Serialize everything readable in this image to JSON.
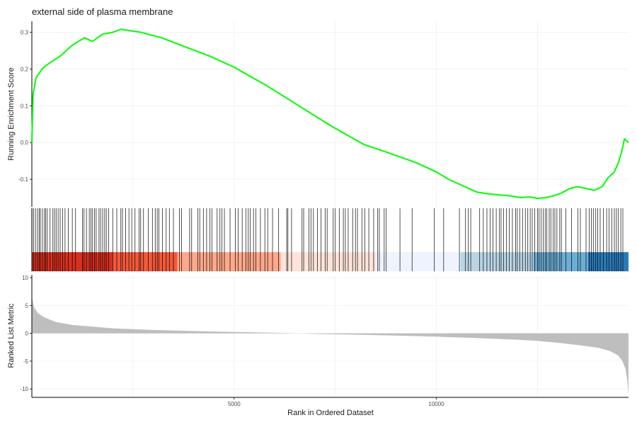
{
  "chart_data": {
    "type": "line",
    "title": "external side of plasma membrane",
    "xlabel": "Rank in Ordered Dataset",
    "xlim": [
      0,
      14750
    ],
    "xticks": [
      5000,
      10000
    ],
    "grid": true,
    "colors": {
      "running_es": "#00ff00",
      "ranked_fill": "#bebebe",
      "hits": "#000000",
      "axis": "#000000",
      "grid": "#ebebeb",
      "rank_bands": [
        "#d7301f",
        "#f4583b",
        "#fca88a",
        "#fde3d9",
        "#eef4fd",
        "#b8d4e5",
        "#6baed6",
        "#2b7bba"
      ]
    },
    "running_score": {
      "ylabel": "Running Enrichment Score",
      "ylim": [
        -0.175,
        0.33
      ],
      "yticks": [
        -0.1,
        0.0,
        0.1,
        0.2,
        0.3
      ],
      "ytick_labels": [
        "-0.1",
        "0.0",
        "0.1",
        "0.2",
        "0.3"
      ],
      "x": [
        0,
        30,
        100,
        250,
        420,
        700,
        1000,
        1300,
        1500,
        1750,
        2000,
        2200,
        2700,
        3200,
        3800,
        4400,
        5000,
        5800,
        6600,
        7400,
        8200,
        8600,
        9000,
        9500,
        10000,
        10300,
        10700,
        11000,
        11300,
        11600,
        11800,
        12100,
        12300,
        12500,
        12700,
        12900,
        13100,
        13300,
        13500,
        13700,
        13900,
        14100,
        14250,
        14400,
        14500,
        14580,
        14650,
        14750
      ],
      "y": [
        0.0,
        0.13,
        0.175,
        0.2,
        0.215,
        0.235,
        0.265,
        0.285,
        0.275,
        0.295,
        0.3,
        0.308,
        0.3,
        0.285,
        0.26,
        0.235,
        0.205,
        0.155,
        0.1,
        0.045,
        -0.005,
        -0.02,
        -0.035,
        -0.055,
        -0.08,
        -0.1,
        -0.12,
        -0.135,
        -0.14,
        -0.143,
        -0.145,
        -0.15,
        -0.148,
        -0.152,
        -0.15,
        -0.145,
        -0.137,
        -0.125,
        -0.12,
        -0.125,
        -0.13,
        -0.12,
        -0.095,
        -0.08,
        -0.055,
        -0.025,
        0.01,
        0.0
      ]
    },
    "gene_hits": [
      5,
      45,
      90,
      140,
      180,
      210,
      260,
      310,
      340,
      380,
      450,
      520,
      560,
      600,
      650,
      700,
      760,
      820,
      900,
      1000,
      1080,
      1250,
      1290,
      1350,
      1420,
      1460,
      1500,
      1550,
      1590,
      1660,
      1700,
      1750,
      1800,
      1840,
      1900,
      2000,
      2100,
      2200,
      2240,
      2320,
      2400,
      2470,
      2550,
      2650,
      2690,
      2760,
      2880,
      2980,
      3050,
      3100,
      3140,
      3230,
      3320,
      3400,
      3500,
      3650,
      3700,
      3900,
      3950,
      4100,
      4150,
      4240,
      4320,
      4400,
      4450,
      4580,
      4650,
      4700,
      4760,
      4900,
      5030,
      5100,
      5200,
      5290,
      5350,
      5400,
      5480,
      5540,
      5650,
      5760,
      5830,
      5950,
      6100,
      6300,
      6330,
      6420,
      6680,
      6720,
      6850,
      6900,
      6960,
      7060,
      7150,
      7250,
      7300,
      7450,
      7500,
      7600,
      7700,
      7750,
      7820,
      7930,
      8000,
      8050,
      8160,
      8230,
      8330,
      8450,
      8550,
      8590,
      8710,
      8760,
      9100,
      9400,
      9950,
      10180,
      10570,
      10720,
      10790,
      10850,
      11070,
      11160,
      11250,
      11330,
      11400,
      11480,
      11560,
      11600,
      11660,
      11730,
      11800,
      11880,
      11960,
      12000,
      12060,
      12130,
      12200,
      12260,
      12320,
      12370,
      12430,
      12500,
      12540,
      12590,
      12640,
      12690,
      12730,
      12790,
      12830,
      12890,
      12930,
      12980,
      13050,
      13090,
      13200,
      13340,
      13500,
      13560,
      13700,
      13780,
      13830,
      13880,
      13940,
      13990,
      14050,
      14130,
      14210,
      14270,
      14340,
      14400,
      14450,
      14500,
      14560,
      14610
    ],
    "rank_bands_x": [
      0,
      2000,
      3600,
      6150,
      8500,
      10600,
      12400,
      13750,
      14750
    ],
    "ranked_metric": {
      "ylabel": "Ranked List Metric",
      "ylim": [
        -11.5,
        10.5
      ],
      "yticks": [
        -10,
        -5,
        0,
        5,
        10
      ],
      "ytick_labels": [
        "-10",
        "-5",
        "0",
        "5",
        "10"
      ],
      "x": [
        0,
        20,
        60,
        150,
        300,
        600,
        1000,
        1500,
        2000,
        2500,
        3000,
        4000,
        5000,
        6000,
        6600,
        7000,
        8000,
        9000,
        10000,
        11000,
        12000,
        12500,
        13000,
        13500,
        14000,
        14300,
        14500,
        14600,
        14680,
        14720,
        14750
      ],
      "y": [
        6.5,
        5.8,
        4.6,
        3.6,
        2.9,
        2.0,
        1.5,
        1.2,
        0.9,
        0.75,
        0.6,
        0.4,
        0.25,
        0.1,
        0.0,
        -0.1,
        -0.25,
        -0.4,
        -0.6,
        -0.85,
        -1.15,
        -1.35,
        -1.7,
        -2.1,
        -2.6,
        -3.2,
        -4.0,
        -5.0,
        -6.5,
        -8.5,
        -11.0
      ]
    }
  }
}
